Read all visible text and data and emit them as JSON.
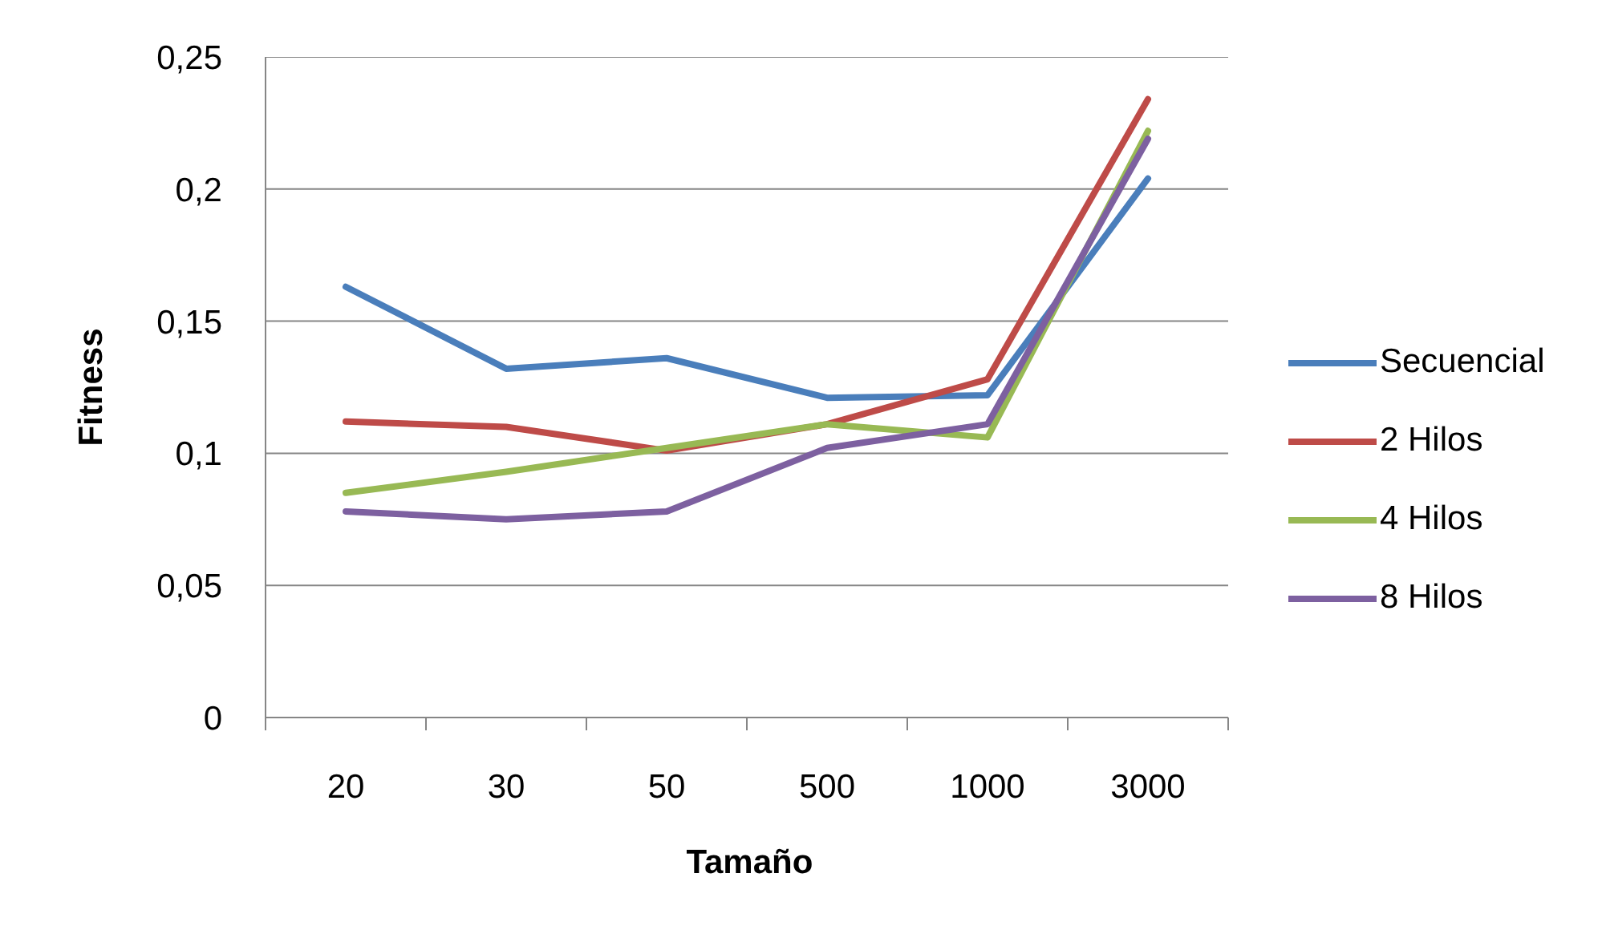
{
  "chart_data": {
    "type": "line",
    "xlabel": "Tamaño",
    "ylabel": "Fitness",
    "categories": [
      "20",
      "30",
      "50",
      "500",
      "1000",
      "3000"
    ],
    "series": [
      {
        "name": "Secuencial",
        "color": "#4a7ebb",
        "values": [
          0.163,
          0.132,
          0.136,
          0.121,
          0.122,
          0.204
        ]
      },
      {
        "name": "2 Hilos",
        "color": "#be4b48",
        "values": [
          0.112,
          0.11,
          0.101,
          0.111,
          0.128,
          0.234
        ]
      },
      {
        "name": "4 Hilos",
        "color": "#98b954",
        "values": [
          0.085,
          0.093,
          0.102,
          0.111,
          0.106,
          0.222
        ]
      },
      {
        "name": "8 Hilos",
        "color": "#7d60a0",
        "values": [
          0.078,
          0.075,
          0.078,
          0.102,
          0.111,
          0.219
        ]
      }
    ],
    "ylim": [
      0,
      0.25
    ],
    "yticks": [
      0,
      {
        "value": 0.05,
        "label": "0,05"
      },
      {
        "value": 0.1,
        "label": "0,1"
      },
      {
        "value": 0.15,
        "label": "0,15"
      },
      {
        "value": 0.2,
        "label": "0,2"
      },
      {
        "value": 0.25,
        "label": "0,25"
      }
    ],
    "grid": "y",
    "legend": "right",
    "line_style": "solid"
  }
}
